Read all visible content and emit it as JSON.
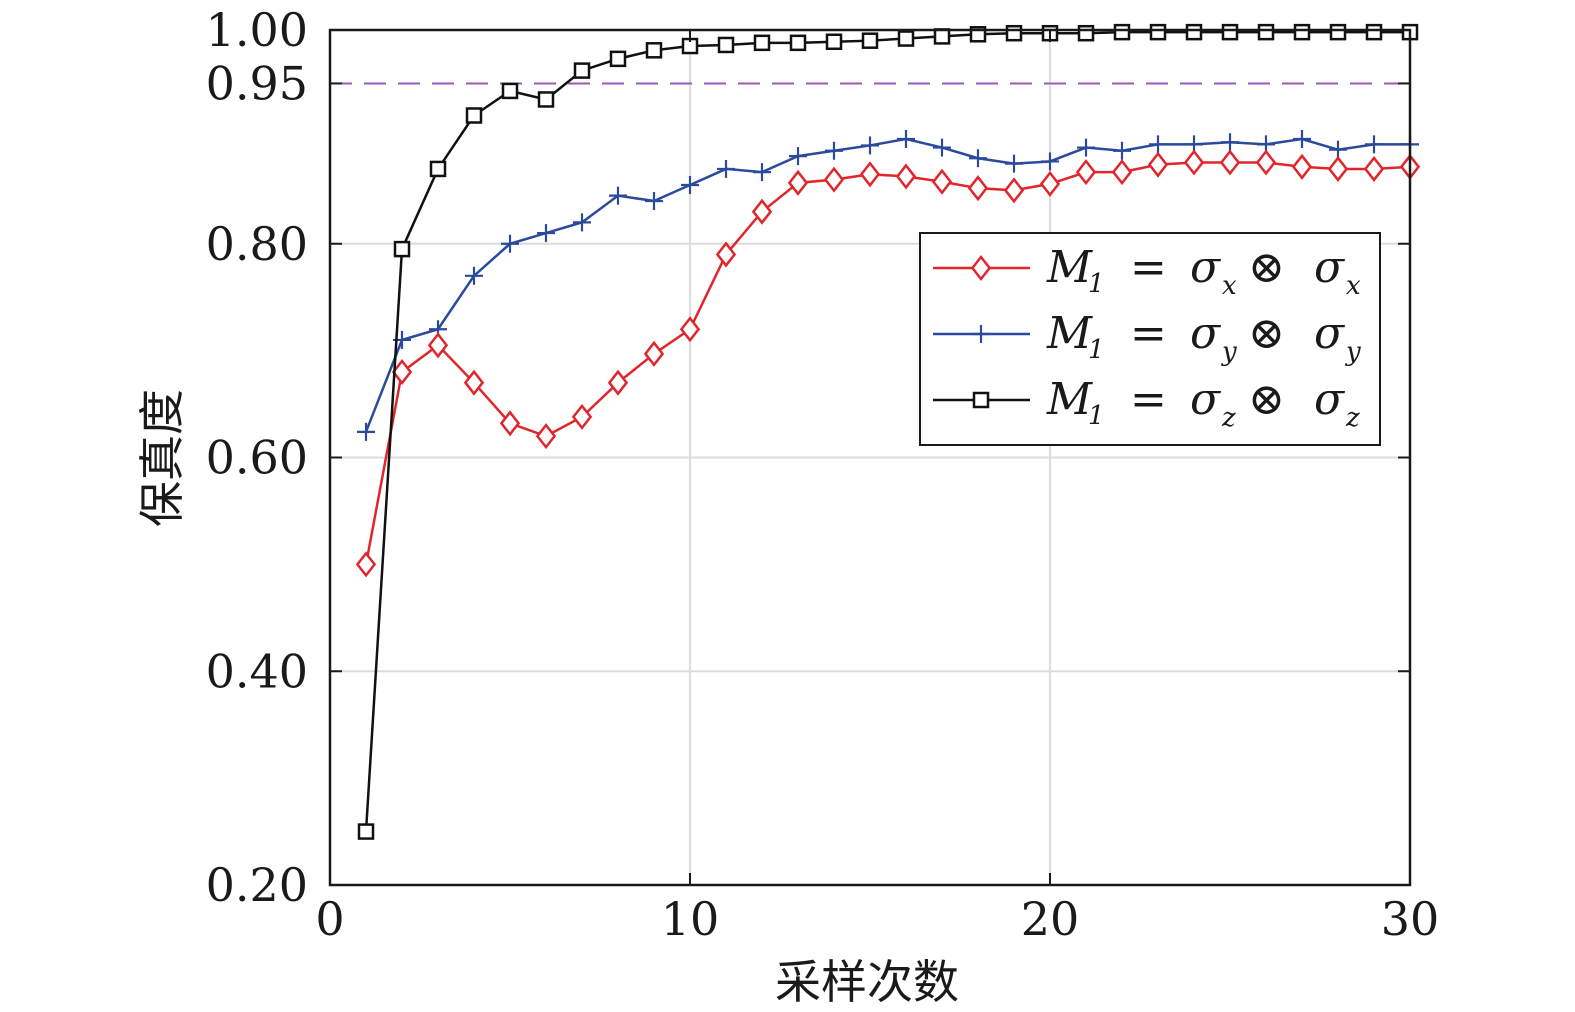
{
  "chart_data": {
    "type": "line",
    "xlabel": "采样次数",
    "ylabel": "保真度",
    "xlim": [
      0,
      30
    ],
    "ylim": [
      0.2,
      1.0
    ],
    "x_ticks": [
      "0",
      "10",
      "20",
      "30"
    ],
    "y_ticks": [
      "0.20",
      "0.40",
      "0.60",
      "0.80",
      "0.95",
      "1.00"
    ],
    "grid": true,
    "legend_position": "middle-right",
    "reference_line": {
      "y": 0.95,
      "color": "#9b59b6",
      "style": "dashed"
    },
    "x": [
      1,
      2,
      3,
      4,
      5,
      6,
      7,
      8,
      9,
      10,
      11,
      12,
      13,
      14,
      15,
      16,
      17,
      18,
      19,
      20,
      21,
      22,
      23,
      24,
      25,
      26,
      27,
      28,
      29,
      30
    ],
    "series": [
      {
        "name": "M1 = σx ⊗ σx",
        "legend": {
          "var": "M",
          "var_sub": "1",
          "eq": "=",
          "sym": "σ",
          "sym_sub": "x",
          "op": "⊗"
        },
        "color": "#e0262c",
        "marker": "diamond",
        "values": [
          0.5,
          0.68,
          0.705,
          0.67,
          0.632,
          0.62,
          0.638,
          0.67,
          0.697,
          0.72,
          0.79,
          0.83,
          0.857,
          0.86,
          0.865,
          0.863,
          0.858,
          0.852,
          0.85,
          0.856,
          0.867,
          0.867,
          0.874,
          0.876,
          0.876,
          0.876,
          0.872,
          0.87,
          0.87,
          0.872
        ]
      },
      {
        "name": "M1 = σy ⊗ σy",
        "legend": {
          "var": "M",
          "var_sub": "1",
          "eq": "=",
          "sym": "σ",
          "sym_sub": "y",
          "op": "⊗"
        },
        "color": "#2b4a9c",
        "marker": "plus",
        "values": [
          0.624,
          0.71,
          0.72,
          0.77,
          0.8,
          0.81,
          0.82,
          0.845,
          0.84,
          0.855,
          0.87,
          0.867,
          0.882,
          0.887,
          0.892,
          0.898,
          0.89,
          0.88,
          0.875,
          0.877,
          0.89,
          0.887,
          0.893,
          0.893,
          0.895,
          0.893,
          0.898,
          0.888,
          0.893,
          0.893
        ]
      },
      {
        "name": "M1 = σz ⊗ σz",
        "legend": {
          "var": "M",
          "var_sub": "1",
          "eq": "=",
          "sym": "σ",
          "sym_sub": "z",
          "op": "⊗"
        },
        "color": "#111111",
        "marker": "square",
        "values": [
          0.25,
          0.795,
          0.87,
          0.92,
          0.943,
          0.935,
          0.962,
          0.973,
          0.981,
          0.985,
          0.986,
          0.988,
          0.988,
          0.989,
          0.99,
          0.992,
          0.994,
          0.996,
          0.997,
          0.997,
          0.997,
          0.998,
          0.998,
          0.998,
          0.998,
          0.998,
          0.998,
          0.998,
          0.998,
          0.998
        ]
      }
    ]
  }
}
